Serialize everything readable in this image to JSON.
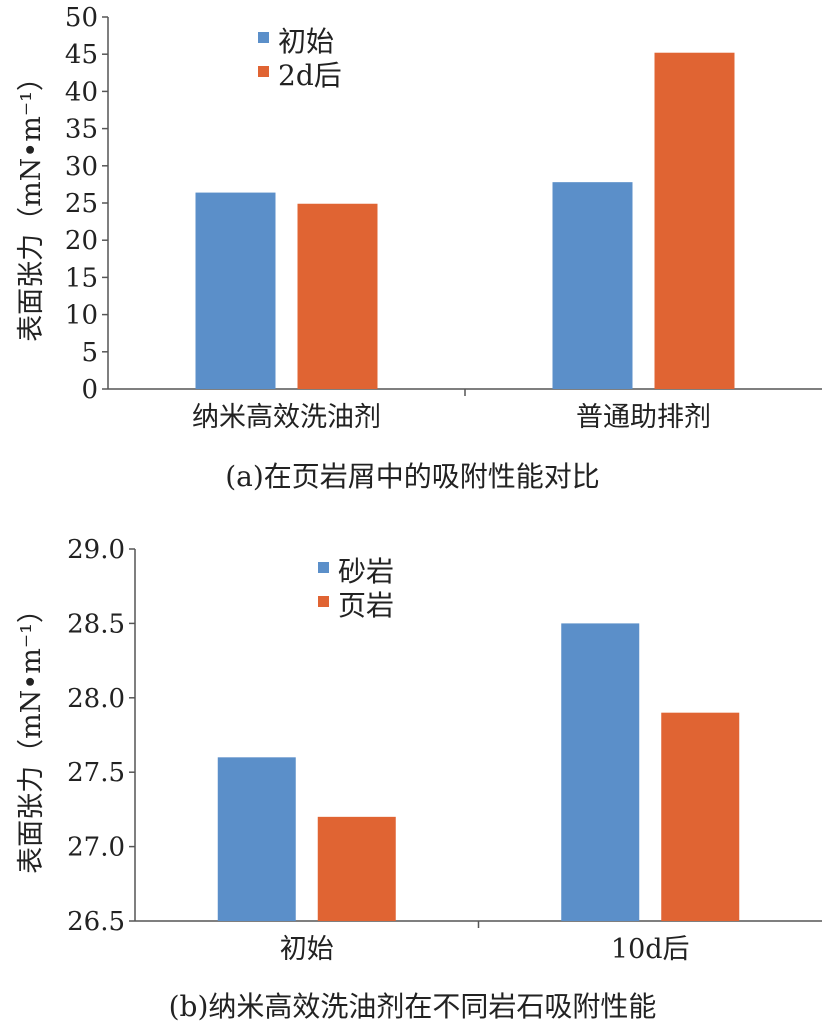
{
  "chart_data": [
    {
      "type": "bar",
      "title": "",
      "ylabel": "表面张力（mN•m⁻¹）",
      "xlabel": "",
      "ylim": [
        0,
        50
      ],
      "yticks": [
        "0",
        "5",
        "10",
        "15",
        "20",
        "25",
        "30",
        "35",
        "40",
        "45",
        "50"
      ],
      "categories": [
        "纳米高效洗油剂",
        "普通助排剂"
      ],
      "series": [
        {
          "name": "初始",
          "color": "#5B8FC9",
          "values": [
            26.4,
            27.8
          ]
        },
        {
          "name": "2d后",
          "color": "#E06433",
          "values": [
            24.9,
            45.2
          ]
        }
      ],
      "legend_position": "top-left",
      "caption": "(a)在页岩屑中的吸附性能对比"
    },
    {
      "type": "bar",
      "title": "",
      "ylabel": "表面张力（mN•m⁻¹）",
      "xlabel": "",
      "ylim": [
        26.5,
        29.0
      ],
      "yticks": [
        "26.5",
        "27.0",
        "27.5",
        "28.0",
        "28.5",
        "29.0"
      ],
      "categories": [
        "初始",
        "10d后"
      ],
      "series": [
        {
          "name": "砂岩",
          "color": "#5B8FC9",
          "values": [
            27.6,
            28.5
          ]
        },
        {
          "name": "页岩",
          "color": "#E06433",
          "values": [
            27.2,
            27.9
          ]
        }
      ],
      "legend_position": "top-left",
      "caption": "(b)纳米高效洗油剂在不同岩石吸附性能"
    }
  ]
}
